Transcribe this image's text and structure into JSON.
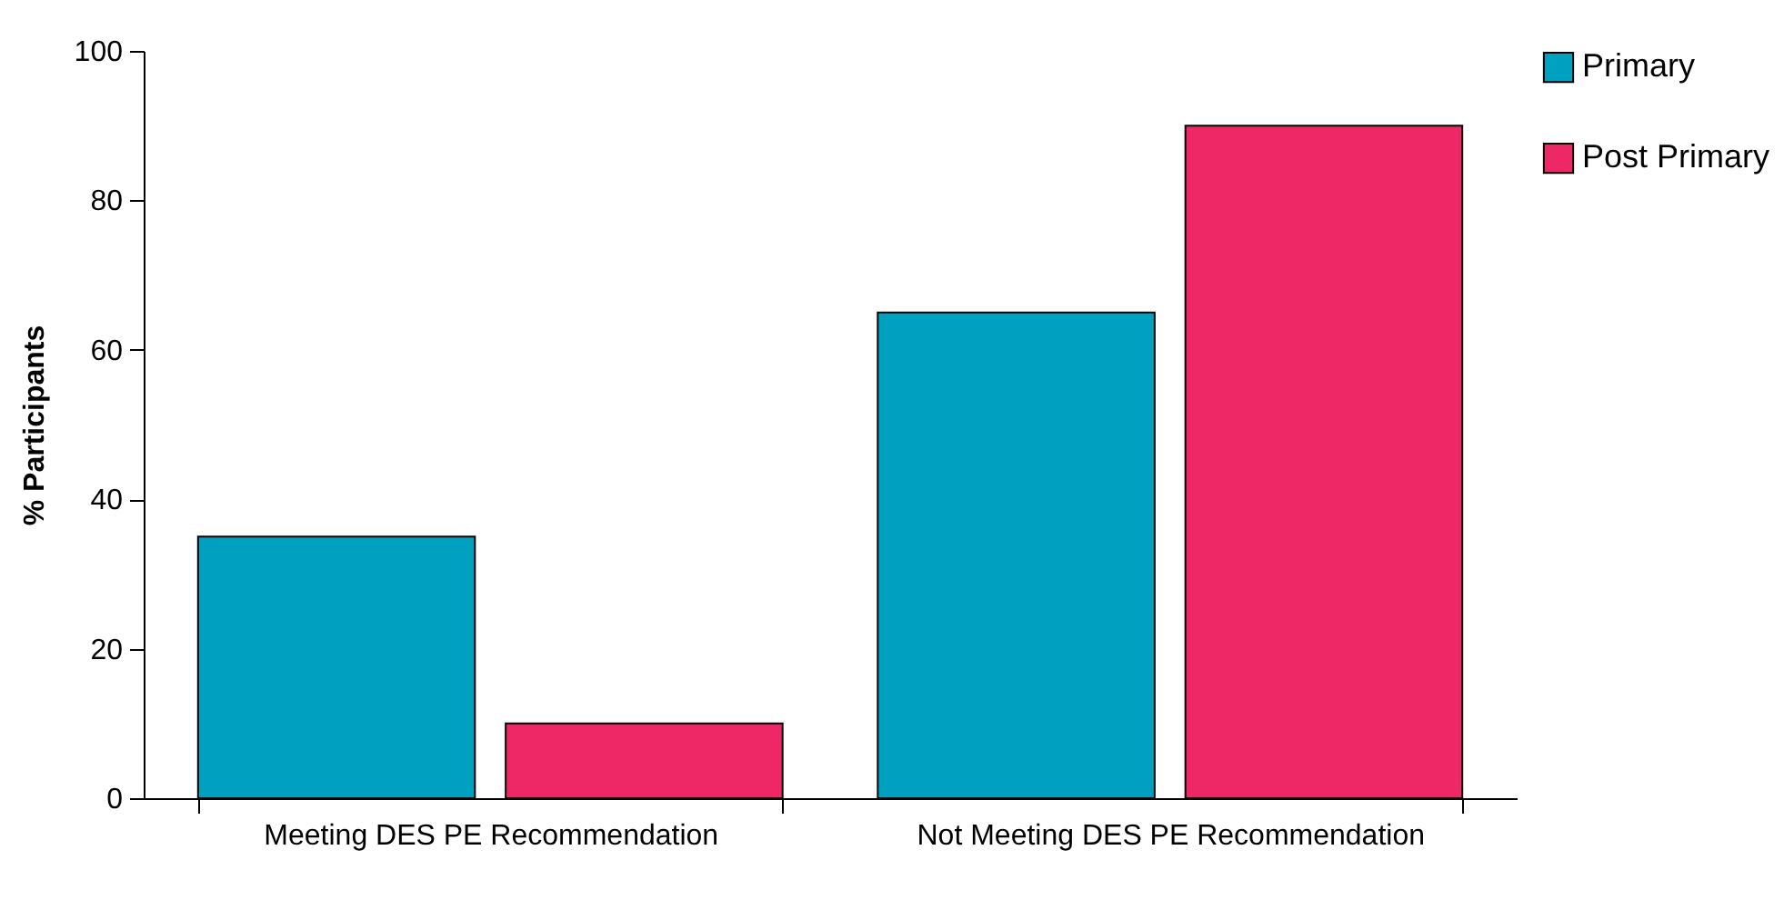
{
  "chart_data": {
    "type": "bar",
    "ylabel": "% Participants",
    "categories": [
      "Meeting DES PE\nRecommendation",
      "Not Meeting DES PE\nRecommendation"
    ],
    "series": [
      {
        "name": "Primary",
        "color": "#00a0c0",
        "values": [
          35,
          65
        ]
      },
      {
        "name": "Post Primary",
        "color": "#ee2766",
        "values": [
          10,
          90
        ]
      }
    ],
    "ylim": [
      0,
      100
    ],
    "yticks": [
      0,
      20,
      40,
      60,
      80,
      100
    ],
    "grid": false,
    "legend": "top right"
  }
}
